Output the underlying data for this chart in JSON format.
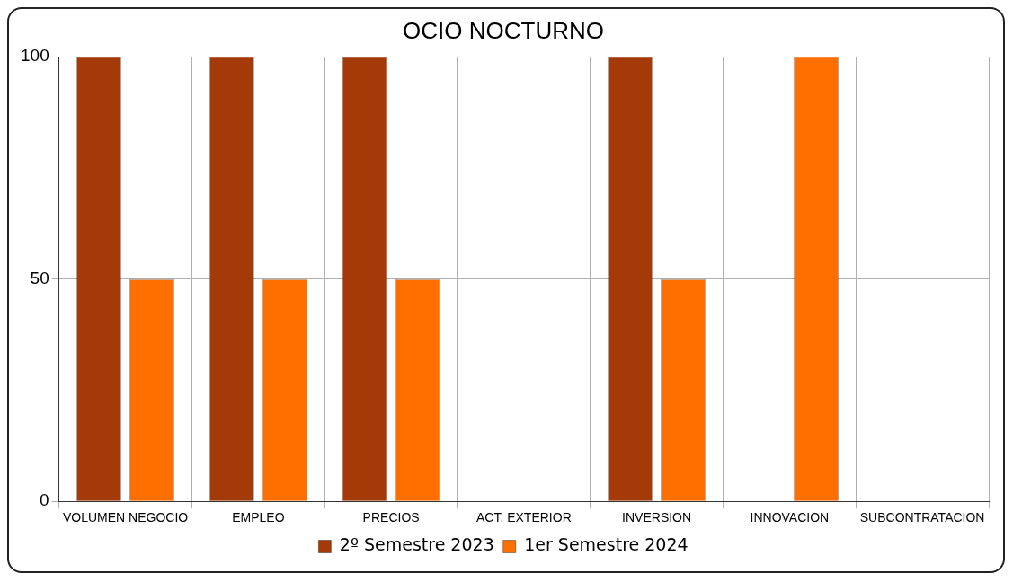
{
  "chart_data": {
    "type": "bar",
    "title": "OCIO NOCTURNO",
    "categories": [
      "VOLUMEN NEGOCIO",
      "EMPLEO",
      "PRECIOS",
      "ACT. EXTERIOR",
      "INVERSION",
      "INNOVACION",
      "SUBCONTRATACION"
    ],
    "series": [
      {
        "name": "2º Semestre 2023",
        "color": "#a33a08",
        "values": [
          100,
          100,
          100,
          0,
          100,
          0,
          0
        ]
      },
      {
        "name": "1er Semestre 2024",
        "color": "#ff6f00",
        "values": [
          50,
          50,
          50,
          0,
          50,
          100,
          0
        ]
      }
    ],
    "ylim": [
      0,
      100
    ],
    "yticks": [
      0,
      50,
      100
    ],
    "grid": true,
    "legend": "bottom"
  }
}
